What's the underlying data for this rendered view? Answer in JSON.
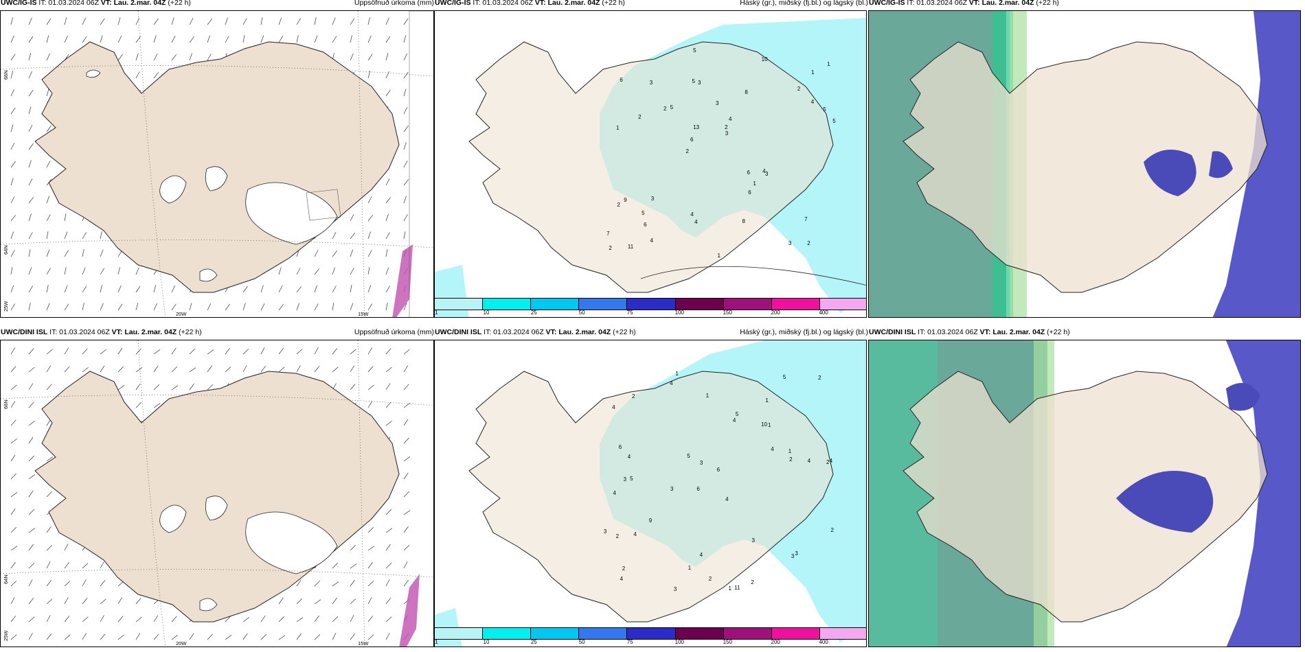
{
  "rows": [
    {
      "panels": [
        {
          "model": "UWC/IG-IS",
          "it": " IT: 01.03.2024 06Z ",
          "vt_label": "VT:",
          "vt": " Lau. 2.mar. 04Z",
          "lead": " (+22 h)",
          "right": "",
          "kind": "wind"
        },
        {
          "model": "UWC/IG-IS",
          "it": " IT: 01.03.2024 06Z ",
          "vt_label": "VT:",
          "vt": " Lau. 2.mar. 04Z",
          "lead": " (+22 h)",
          "right": "Uppsöfnuð úrkoma (mm)",
          "kind": "precip"
        },
        {
          "model": "UWC/IG-IS",
          "it": " IT: 01.03.2024 06Z ",
          "vt_label": "VT:",
          "vt": " Lau. 2.mar. 04Z",
          "lead": " (+22 h)",
          "right": "Háský (gr.), miðský (fj.bl.) og lágský (bl.)",
          "kind": "cloud"
        }
      ]
    },
    {
      "panels": [
        {
          "model": "UWC/DINI ISL",
          "it": " IT: 01.03.2024 06Z ",
          "vt_label": "VT:",
          "vt": " Lau. 2.mar. 04Z",
          "lead": " (+22 h)",
          "right": "",
          "kind": "wind"
        },
        {
          "model": "UWC/DINI ISL",
          "it": " IT: 01.03.2024 06Z ",
          "vt_label": "VT:",
          "vt": " Lau. 2.mar. 04Z",
          "lead": " (+22 h)",
          "right": "Uppsöfnuð úrkoma (mm)",
          "kind": "precip"
        },
        {
          "model": "UWC/DINI ISL",
          "it": " IT: 01.03.2024 06Z ",
          "vt_label": "VT:",
          "vt": " Lau. 2.mar. 04Z",
          "lead": " (+22 h)",
          "right": "Háský (gr.), miðský (fj.bl.) og lágský (bl.)",
          "kind": "cloud"
        }
      ]
    }
  ],
  "wind_axes": {
    "lon": [
      "20W",
      "15W"
    ],
    "lat": [
      "66N",
      "64N",
      "25W"
    ],
    "lat_right": "66N"
  },
  "colorbar": {
    "ticks": [
      "1",
      "10",
      "25",
      "50",
      "75",
      "100",
      "150",
      "200",
      "400"
    ],
    "colors": [
      "#b8f4f6",
      "#00f0f0",
      "#00c8f0",
      "#3478f0",
      "#2b2bc8",
      "#6e0050",
      "#a0107a",
      "#f0109e",
      "#f4a8f0"
    ]
  },
  "precip_top": [
    "2",
    "1",
    "1",
    "2",
    "8",
    "11",
    "5",
    "3",
    "9",
    "5",
    "7",
    "6",
    "3",
    "4",
    "3",
    "6",
    "5",
    "5",
    "6",
    "4",
    "6",
    "4",
    "13",
    "3",
    "10",
    "3",
    "3",
    "7",
    "4",
    "1",
    "2",
    "2",
    "6",
    "4",
    "5",
    "2",
    "2",
    "4",
    "3",
    "2",
    "2",
    "1",
    "1",
    "8",
    "5"
  ],
  "precip_bottom": [
    "1",
    "1",
    "2",
    "6",
    "4",
    "5",
    "4",
    "10",
    "4",
    "4",
    "6",
    "4",
    "4",
    "3",
    "1",
    "11",
    "4",
    "5",
    "4",
    "9",
    "4",
    "3",
    "4",
    "4",
    "3",
    "6",
    "3",
    "2",
    "3",
    "2",
    "3",
    "5",
    "4",
    "5",
    "3",
    "2",
    "1",
    "1",
    "2",
    "1",
    "2",
    "3",
    "2",
    "2",
    "2",
    "1"
  ],
  "colors": {
    "land": "#ede0d0",
    "sea": "#ffffff",
    "precip_light": "#b3f5f8",
    "cloud_high": "#6aa899",
    "cloud_mid": "#4a4ab8",
    "cloud_low": "#2b2bc8"
  }
}
